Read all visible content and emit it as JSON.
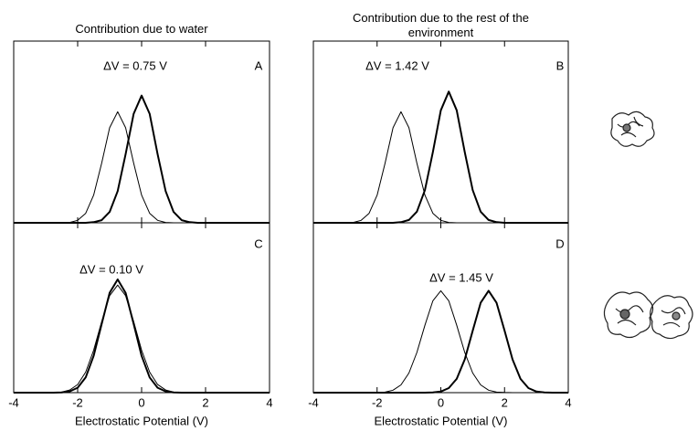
{
  "chart_data": [
    {
      "type": "line",
      "title": "Contribution due to water",
      "panel_label": "A",
      "annotation": "ΔV = 0.75 V",
      "xlim": [
        -4,
        4
      ],
      "ylim": [
        0,
        0.9
      ],
      "x": [
        -4,
        -3.75,
        -3.5,
        -3.25,
        -3,
        -2.75,
        -2.5,
        -2.25,
        -2,
        -1.75,
        -1.5,
        -1.25,
        -1,
        -0.75,
        -0.5,
        -0.25,
        0,
        0.25,
        0.5,
        0.75,
        1,
        1.25,
        1.5,
        1.75,
        2,
        2.25,
        2.5,
        2.75,
        3,
        3.25,
        3.5,
        3.75,
        4
      ],
      "series": [
        {
          "color": "#000000",
          "line_width": 1,
          "values": [
            0,
            0,
            0,
            0,
            0,
            0,
            0,
            0.002,
            0.012,
            0.047,
            0.137,
            0.296,
            0.471,
            0.55,
            0.471,
            0.296,
            0.137,
            0.047,
            0.012,
            0.002,
            0,
            0,
            0,
            0,
            0,
            0,
            0,
            0,
            0,
            0,
            0,
            0,
            0
          ]
        },
        {
          "color": "#000000",
          "line_width": 2,
          "values": [
            0,
            0,
            0,
            0,
            0,
            0,
            0,
            0,
            0,
            0,
            0.003,
            0.013,
            0.054,
            0.157,
            0.34,
            0.54,
            0.63,
            0.54,
            0.34,
            0.157,
            0.054,
            0.013,
            0.003,
            0,
            0,
            0,
            0,
            0,
            0,
            0,
            0,
            0,
            0
          ]
        }
      ]
    },
    {
      "type": "line",
      "title": "Contribution due to the rest of the environment",
      "panel_label": "B",
      "annotation": "ΔV = 1.42 V",
      "xlim": [
        -4,
        4
      ],
      "ylim": [
        0,
        0.9
      ],
      "x": [
        -4,
        -3.75,
        -3.5,
        -3.25,
        -3,
        -2.75,
        -2.5,
        -2.25,
        -2,
        -1.75,
        -1.5,
        -1.25,
        -1,
        -0.75,
        -0.5,
        -0.25,
        0,
        0.25,
        0.5,
        0.75,
        1,
        1.25,
        1.5,
        1.75,
        2,
        2.25,
        2.5,
        2.75,
        3,
        3.25,
        3.5,
        3.75,
        4
      ],
      "series": [
        {
          "color": "#000000",
          "line_width": 1,
          "values": [
            0,
            0,
            0,
            0,
            0,
            0.002,
            0.012,
            0.047,
            0.137,
            0.296,
            0.471,
            0.55,
            0.471,
            0.296,
            0.137,
            0.047,
            0.012,
            0.002,
            0,
            0,
            0,
            0,
            0,
            0,
            0,
            0,
            0,
            0,
            0,
            0,
            0,
            0,
            0
          ]
        },
        {
          "color": "#000000",
          "line_width": 2,
          "values": [
            0,
            0,
            0,
            0,
            0,
            0,
            0,
            0,
            0,
            0,
            0,
            0.003,
            0.014,
            0.055,
            0.162,
            0.35,
            0.557,
            0.65,
            0.557,
            0.35,
            0.162,
            0.055,
            0.014,
            0.003,
            0,
            0,
            0,
            0,
            0,
            0,
            0,
            0,
            0
          ]
        }
      ]
    },
    {
      "type": "line",
      "panel_label": "C",
      "annotation": "ΔV = 0.10 V",
      "xlabel": "Electrostatic Potential (V)",
      "xlim": [
        -4,
        4
      ],
      "ylim": [
        0,
        0.9
      ],
      "xticks": [
        -4,
        -2,
        0,
        2,
        4
      ],
      "x": [
        -4,
        -3.75,
        -3.5,
        -3.25,
        -3,
        -2.75,
        -2.5,
        -2.25,
        -2,
        -1.75,
        -1.5,
        -1.25,
        -1,
        -0.75,
        -0.5,
        -0.25,
        0,
        0.25,
        0.5,
        0.75,
        1,
        1.25,
        1.5,
        1.75,
        2,
        2.25,
        2.5,
        2.75,
        3,
        3.25,
        3.5,
        3.75,
        4
      ],
      "series": [
        {
          "color": "#000000",
          "line_width": 1,
          "values": [
            0,
            0,
            0,
            0,
            0,
            0.001,
            0.003,
            0.014,
            0.043,
            0.109,
            0.225,
            0.377,
            0.514,
            0.57,
            0.514,
            0.377,
            0.225,
            0.109,
            0.043,
            0.014,
            0.003,
            0.001,
            0,
            0,
            0,
            0,
            0,
            0,
            0,
            0,
            0,
            0,
            0
          ]
        },
        {
          "color": "#000000",
          "line_width": 2,
          "values": [
            0,
            0,
            0,
            0,
            0,
            0,
            0.001,
            0.007,
            0.026,
            0.081,
            0.195,
            0.364,
            0.529,
            0.6,
            0.529,
            0.364,
            0.195,
            0.081,
            0.026,
            0.007,
            0.001,
            0,
            0,
            0,
            0,
            0,
            0,
            0,
            0,
            0,
            0,
            0,
            0
          ]
        }
      ]
    },
    {
      "type": "line",
      "panel_label": "D",
      "annotation": "ΔV = 1.45 V",
      "xlabel": "Electrostatic Potential (V)",
      "xlim": [
        -4,
        4
      ],
      "ylim": [
        0,
        0.9
      ],
      "xticks": [
        -4,
        -2,
        0,
        2,
        4
      ],
      "x": [
        -4,
        -3.75,
        -3.5,
        -3.25,
        -3,
        -2.75,
        -2.5,
        -2.25,
        -2,
        -1.75,
        -1.5,
        -1.25,
        -1,
        -0.75,
        -0.5,
        -0.25,
        0,
        0.25,
        0.5,
        0.75,
        1,
        1.25,
        1.5,
        1.75,
        2,
        2.25,
        2.5,
        2.75,
        3,
        3.25,
        3.5,
        3.75,
        4
      ],
      "series": [
        {
          "color": "#000000",
          "line_width": 1,
          "values": [
            0,
            0,
            0,
            0,
            0,
            0,
            0,
            0,
            0.001,
            0.003,
            0.013,
            0.041,
            0.104,
            0.213,
            0.357,
            0.487,
            0.54,
            0.487,
            0.357,
            0.213,
            0.104,
            0.041,
            0.013,
            0.003,
            0.001,
            0,
            0,
            0,
            0,
            0,
            0,
            0,
            0
          ]
        },
        {
          "color": "#000000",
          "line_width": 2,
          "values": [
            0,
            0,
            0,
            0,
            0,
            0,
            0,
            0,
            0,
            0,
            0,
            0,
            0,
            0,
            0,
            0.001,
            0.006,
            0.024,
            0.073,
            0.176,
            0.328,
            0.476,
            0.54,
            0.476,
            0.328,
            0.176,
            0.073,
            0.024,
            0.006,
            0.001,
            0,
            0,
            0
          ]
        }
      ]
    }
  ]
}
